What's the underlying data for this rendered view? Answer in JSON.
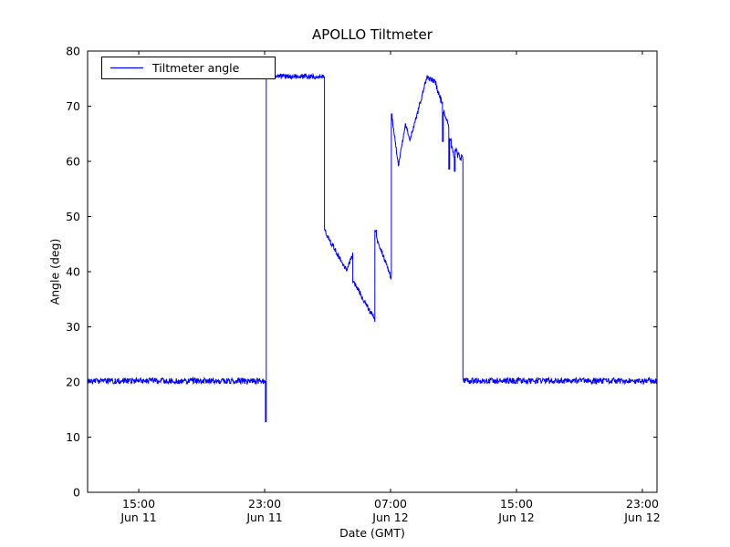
{
  "figure": {
    "background": "#ffffff",
    "frame_color": "#000000"
  },
  "chart_data": {
    "type": "line",
    "title": "APOLLO Tiltmeter",
    "xlabel": "Date (GMT)",
    "ylabel": "Angle (deg)",
    "x_unit": "hours since Jun 11 00:00 GMT",
    "xlim": [
      11.75,
      47.93
    ],
    "ylim": [
      0,
      80
    ],
    "grid": false,
    "line_color": "#0000ff",
    "yticks": [
      0,
      10,
      20,
      30,
      40,
      50,
      60,
      70,
      80
    ],
    "xticks": [
      {
        "t": 15,
        "line1": "15:00",
        "line2": "Jun 11"
      },
      {
        "t": 23,
        "line1": "23:00",
        "line2": "Jun 11"
      },
      {
        "t": 31,
        "line1": "07:00",
        "line2": "Jun 12"
      },
      {
        "t": 39,
        "line1": "15:00",
        "line2": "Jun 12"
      },
      {
        "t": 47,
        "line1": "23:00",
        "line2": "Jun 12"
      }
    ],
    "legend": {
      "position": "upper left",
      "entries": [
        {
          "label": "Tiltmeter angle",
          "color": "#0000ff"
        }
      ]
    },
    "series_segments": [
      {
        "t0": 11.75,
        "t1": 23.05,
        "y0": 20.2,
        "y1": 20.2,
        "noise": 0.55,
        "n": 420
      },
      {
        "t0": 23.05,
        "t1": 23.1,
        "y0": 12.8,
        "y1": 12.8,
        "noise": 0.0,
        "n": 2
      },
      {
        "t0": 23.1,
        "t1": 26.8,
        "y0": 75.4,
        "y1": 75.4,
        "noise": 0.45,
        "n": 165
      },
      {
        "t0": 26.8,
        "t1": 26.85,
        "y0": 47.6,
        "y1": 47.6,
        "noise": 0.0,
        "n": 2
      },
      {
        "t0": 26.85,
        "t1": 28.2,
        "y0": 47.2,
        "y1": 40.2,
        "noise": 0.5,
        "n": 55
      },
      {
        "t0": 28.2,
        "t1": 28.6,
        "y0": 40.2,
        "y1": 43.2,
        "noise": 0.35,
        "n": 18
      },
      {
        "t0": 28.6,
        "t1": 28.65,
        "y0": 38.2,
        "y1": 38.2,
        "noise": 0.2,
        "n": 2
      },
      {
        "t0": 28.65,
        "t1": 30.0,
        "y0": 38.2,
        "y1": 31.3,
        "noise": 0.5,
        "n": 55
      },
      {
        "t0": 30.0,
        "t1": 30.1,
        "y0": 47.4,
        "y1": 47.4,
        "noise": 0.2,
        "n": 4
      },
      {
        "t0": 30.1,
        "t1": 31.05,
        "y0": 46.2,
        "y1": 38.9,
        "noise": 0.45,
        "n": 40
      },
      {
        "t0": 31.05,
        "t1": 31.1,
        "y0": 68.6,
        "y1": 68.6,
        "noise": 0.0,
        "n": 2
      },
      {
        "t0": 31.1,
        "t1": 31.5,
        "y0": 67.8,
        "y1": 59.2,
        "noise": 0.35,
        "n": 18
      },
      {
        "t0": 31.5,
        "t1": 31.95,
        "y0": 59.2,
        "y1": 66.6,
        "noise": 0.4,
        "n": 20
      },
      {
        "t0": 31.95,
        "t1": 32.25,
        "y0": 66.6,
        "y1": 63.8,
        "noise": 0.4,
        "n": 14
      },
      {
        "t0": 32.25,
        "t1": 33.3,
        "y0": 63.8,
        "y1": 75.2,
        "noise": 0.55,
        "n": 46
      },
      {
        "t0": 33.3,
        "t1": 33.85,
        "y0": 75.2,
        "y1": 74.6,
        "noise": 0.5,
        "n": 25
      },
      {
        "t0": 33.85,
        "t1": 34.3,
        "y0": 74.2,
        "y1": 70.2,
        "noise": 0.7,
        "n": 20
      },
      {
        "t0": 34.3,
        "t1": 34.35,
        "y0": 63.6,
        "y1": 63.6,
        "noise": 0.0,
        "n": 2
      },
      {
        "t0": 34.35,
        "t1": 34.7,
        "y0": 69.4,
        "y1": 66.5,
        "noise": 0.6,
        "n": 16
      },
      {
        "t0": 34.7,
        "t1": 34.75,
        "y0": 58.6,
        "y1": 58.6,
        "noise": 0.0,
        "n": 2
      },
      {
        "t0": 34.75,
        "t1": 35.05,
        "y0": 64.8,
        "y1": 60.5,
        "noise": 0.7,
        "n": 14
      },
      {
        "t0": 35.05,
        "t1": 35.1,
        "y0": 58.2,
        "y1": 58.2,
        "noise": 0.0,
        "n": 2
      },
      {
        "t0": 35.1,
        "t1": 35.6,
        "y0": 62.0,
        "y1": 60.2,
        "noise": 0.8,
        "n": 22
      },
      {
        "t0": 35.6,
        "t1": 47.93,
        "y0": 20.2,
        "y1": 20.2,
        "noise": 0.55,
        "n": 460
      }
    ]
  }
}
